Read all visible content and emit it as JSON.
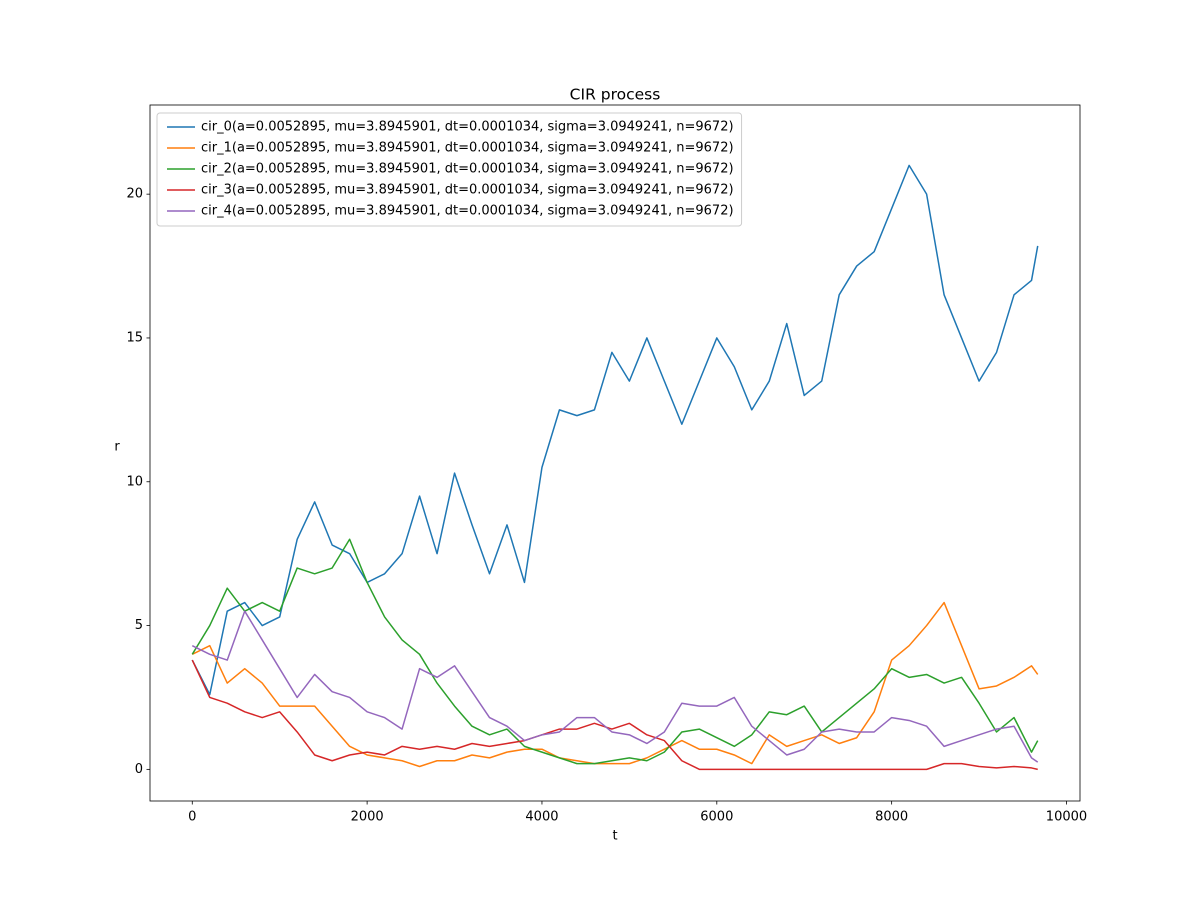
{
  "chart_data": {
    "type": "line",
    "title": "CIR process",
    "x_label": "t",
    "y_label": "r",
    "x": [
      0,
      200,
      400,
      600,
      800,
      1000,
      1200,
      1400,
      1600,
      1800,
      2000,
      2200,
      2400,
      2600,
      2800,
      3000,
      3200,
      3400,
      3600,
      3800,
      4000,
      4200,
      4400,
      4600,
      4800,
      5000,
      5200,
      5400,
      5600,
      5800,
      6000,
      6200,
      6400,
      6600,
      6800,
      7000,
      7200,
      7400,
      7600,
      7800,
      8000,
      8200,
      8400,
      8600,
      8800,
      9000,
      9200,
      9400,
      9600,
      9671
    ],
    "series": [
      {
        "name": "cir_0(a=0.0052895, mu=3.8945901, dt=0.0001034, sigma=3.0949241, n=9672)",
        "color": "#1f77b4",
        "values": [
          3.8,
          2.6,
          5.5,
          5.8,
          5.0,
          5.3,
          8.0,
          9.3,
          7.8,
          7.5,
          6.5,
          6.8,
          7.5,
          9.5,
          7.5,
          10.3,
          8.5,
          6.8,
          8.5,
          6.5,
          10.5,
          12.5,
          12.3,
          12.5,
          14.5,
          13.5,
          15.0,
          13.5,
          12.0,
          13.5,
          15.0,
          14.0,
          12.5,
          13.5,
          15.5,
          13.0,
          13.5,
          16.5,
          17.5,
          18.0,
          19.5,
          21.0,
          20.0,
          16.5,
          15.0,
          13.5,
          14.5,
          16.5,
          17.0,
          18.2
        ]
      },
      {
        "name": "cir_1(a=0.0052895, mu=3.8945901, dt=0.0001034, sigma=3.0949241, n=9672)",
        "color": "#ff7f0e",
        "values": [
          4.0,
          4.3,
          3.0,
          3.5,
          3.0,
          2.2,
          2.2,
          2.2,
          1.5,
          0.8,
          0.5,
          0.4,
          0.3,
          0.1,
          0.3,
          0.3,
          0.5,
          0.4,
          0.6,
          0.7,
          0.7,
          0.4,
          0.3,
          0.2,
          0.2,
          0.2,
          0.4,
          0.7,
          1.0,
          0.7,
          0.7,
          0.5,
          0.2,
          1.2,
          0.8,
          1.0,
          1.2,
          0.9,
          1.1,
          2.0,
          3.8,
          4.3,
          5.0,
          5.8,
          4.3,
          2.8,
          2.9,
          3.2,
          3.6,
          3.3
        ]
      },
      {
        "name": "cir_2(a=0.0052895, mu=3.8945901, dt=0.0001034, sigma=3.0949241, n=9672)",
        "color": "#2ca02c",
        "values": [
          4.0,
          5.0,
          6.3,
          5.5,
          5.8,
          5.5,
          7.0,
          6.8,
          7.0,
          8.0,
          6.5,
          5.3,
          4.5,
          4.0,
          3.0,
          2.2,
          1.5,
          1.2,
          1.4,
          0.8,
          0.6,
          0.4,
          0.2,
          0.2,
          0.3,
          0.4,
          0.3,
          0.6,
          1.3,
          1.4,
          1.1,
          0.8,
          1.2,
          2.0,
          1.9,
          2.2,
          1.3,
          1.8,
          2.3,
          2.8,
          3.5,
          3.2,
          3.3,
          3.0,
          3.2,
          2.3,
          1.3,
          1.8,
          0.6,
          1.0
        ]
      },
      {
        "name": "cir_3(a=0.0052895, mu=3.8945901, dt=0.0001034, sigma=3.0949241, n=9672)",
        "color": "#d62728",
        "values": [
          3.8,
          2.5,
          2.3,
          2.0,
          1.8,
          2.0,
          1.3,
          0.5,
          0.3,
          0.5,
          0.6,
          0.5,
          0.8,
          0.7,
          0.8,
          0.7,
          0.9,
          0.8,
          0.9,
          1.0,
          1.2,
          1.4,
          1.4,
          1.6,
          1.4,
          1.6,
          1.2,
          1.0,
          0.3,
          0.0,
          0.0,
          0.0,
          0.0,
          0.0,
          0.0,
          0.0,
          0.0,
          0.0,
          0.0,
          0.0,
          0.0,
          0.0,
          0.0,
          0.2,
          0.2,
          0.1,
          0.05,
          0.1,
          0.05,
          0.0
        ]
      },
      {
        "name": "cir_4(a=0.0052895, mu=3.8945901, dt=0.0001034, sigma=3.0949241, n=9672)",
        "color": "#9467bd",
        "values": [
          4.3,
          4.0,
          3.8,
          5.5,
          4.5,
          3.5,
          2.5,
          3.3,
          2.7,
          2.5,
          2.0,
          1.8,
          1.4,
          3.5,
          3.2,
          3.6,
          2.7,
          1.8,
          1.5,
          1.0,
          1.2,
          1.3,
          1.8,
          1.8,
          1.3,
          1.2,
          0.9,
          1.3,
          2.3,
          2.2,
          2.2,
          2.5,
          1.5,
          1.0,
          0.5,
          0.7,
          1.3,
          1.4,
          1.3,
          1.3,
          1.8,
          1.7,
          1.5,
          0.8,
          1.0,
          1.2,
          1.4,
          1.5,
          0.4,
          0.25
        ]
      }
    ],
    "xlim": [
      -483.55,
      10154.55
    ],
    "ylim": [
      -1.1,
      23.1
    ],
    "xticks": [
      0,
      2000,
      4000,
      6000,
      8000,
      10000
    ],
    "yticks": [
      0,
      5,
      10,
      15,
      20
    ],
    "legend": "upper left"
  }
}
